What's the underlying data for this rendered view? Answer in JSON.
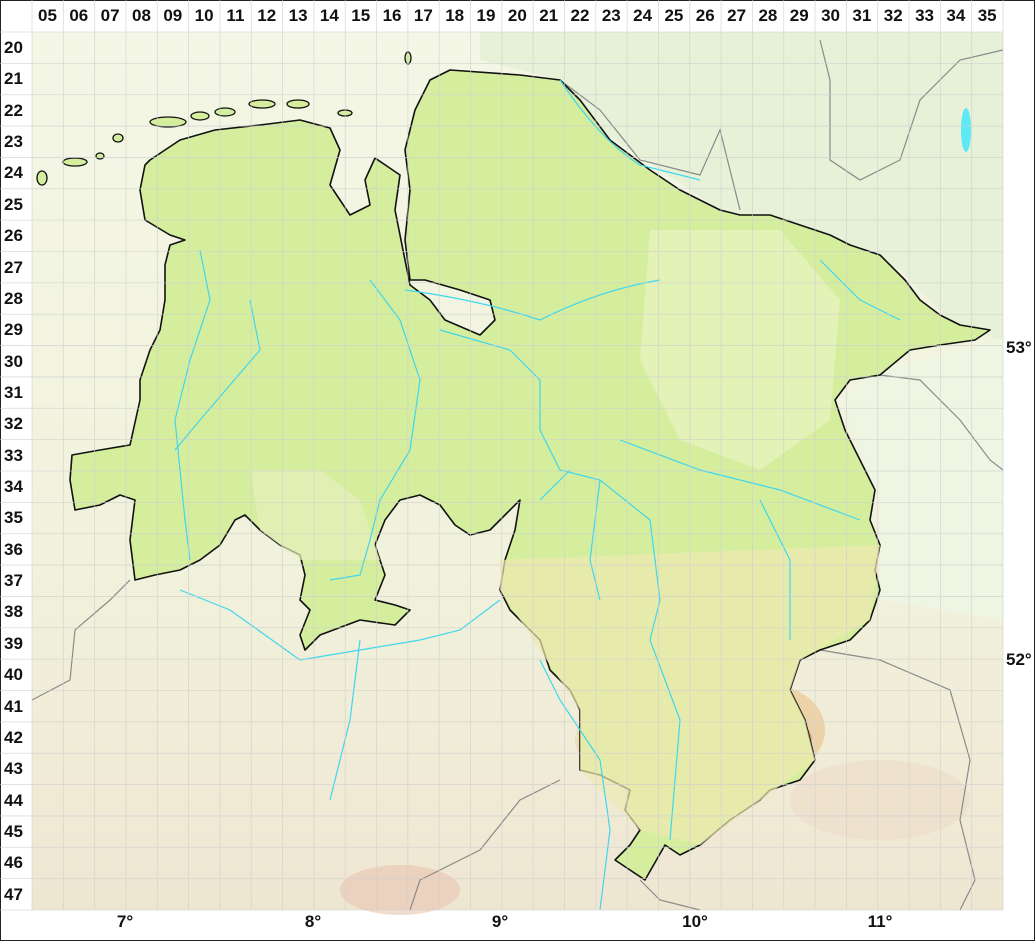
{
  "grid": {
    "columns": [
      "05",
      "06",
      "07",
      "08",
      "09",
      "10",
      "11",
      "12",
      "13",
      "14",
      "15",
      "16",
      "17",
      "18",
      "19",
      "20",
      "21",
      "22",
      "23",
      "24",
      "25",
      "26",
      "27",
      "28",
      "29",
      "30",
      "31",
      "32",
      "33",
      "34",
      "35"
    ],
    "rows": [
      "20",
      "21",
      "22",
      "23",
      "24",
      "25",
      "26",
      "27",
      "28",
      "29",
      "30",
      "31",
      "32",
      "33",
      "34",
      "35",
      "36",
      "37",
      "38",
      "39",
      "40",
      "41",
      "42",
      "43",
      "44",
      "45",
      "46",
      "47"
    ]
  },
  "longitude_labels": [
    "7°",
    "8°",
    "9°",
    "10°",
    "11°"
  ],
  "latitude_labels": [
    "53°",
    "52°"
  ],
  "colors": {
    "region_fill": "#d4ee9e",
    "region_border": "#111111",
    "surrounding_north": "#e7f2d9",
    "surrounding_south": "#f3f5e2",
    "highland": "#e8c89a",
    "peak": "#d98a70",
    "rivers": "#3fd6ee",
    "borders": "#8a8a8a",
    "grid": "#d8d8d8"
  }
}
